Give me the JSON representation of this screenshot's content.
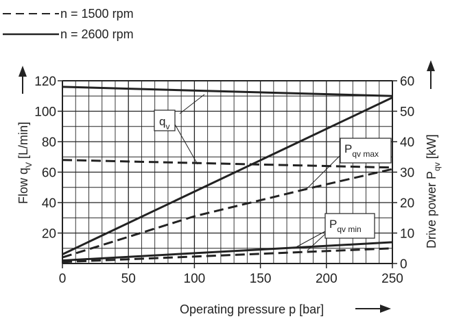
{
  "chart_data": {
    "type": "line",
    "legend": [
      {
        "label": "n = 1500 rpm",
        "style": "dashed"
      },
      {
        "label": "n = 2600 rpm",
        "style": "solid"
      }
    ],
    "xlabel": "Operating pressure p [bar]",
    "ylabel_left": {
      "main": "Flow q",
      "sub": "V",
      "unit": " [L/min]"
    },
    "ylabel_right": {
      "main": "Drive power P",
      "sub": "qv",
      "unit": " [kW]"
    },
    "xlim": [
      0,
      250
    ],
    "ylim_left": [
      0,
      120
    ],
    "ylim_right": [
      0,
      60
    ],
    "x_ticks": [
      0,
      50,
      100,
      150,
      200,
      250
    ],
    "y_ticks_left": [
      20,
      40,
      60,
      80,
      100,
      120
    ],
    "y_ticks_right": [
      0,
      10,
      20,
      30,
      40,
      50,
      60
    ],
    "grid": true,
    "series": [
      {
        "group": "qv",
        "rpm": 2600,
        "axis": "left",
        "style": "solid",
        "x": [
          0,
          250
        ],
        "y": [
          116,
          110
        ]
      },
      {
        "group": "qv",
        "rpm": 1500,
        "axis": "left",
        "style": "dashed",
        "x": [
          0,
          250
        ],
        "y": [
          68,
          63
        ]
      },
      {
        "group": "Pqv max",
        "rpm": 2600,
        "axis": "left",
        "style": "solid",
        "x": [
          0,
          250
        ],
        "y": [
          6,
          109
        ]
      },
      {
        "group": "Pqv max",
        "rpm": 1500,
        "axis": "left",
        "style": "dashed",
        "x": [
          0,
          100,
          190,
          250
        ],
        "y": [
          4,
          31,
          50,
          62
        ]
      },
      {
        "group": "Pqv min",
        "rpm": 2600,
        "axis": "left",
        "style": "solid",
        "x": [
          0,
          250
        ],
        "y": [
          2,
          14
        ]
      },
      {
        "group": "Pqv min",
        "rpm": 1500,
        "axis": "left",
        "style": "dashed",
        "x": [
          0,
          250
        ],
        "y": [
          1,
          10
        ]
      }
    ],
    "annotations": [
      {
        "main": "q",
        "sub": "v"
      },
      {
        "main": "P",
        "sub": "qv max"
      },
      {
        "main": "P",
        "sub": "qv min"
      }
    ]
  }
}
